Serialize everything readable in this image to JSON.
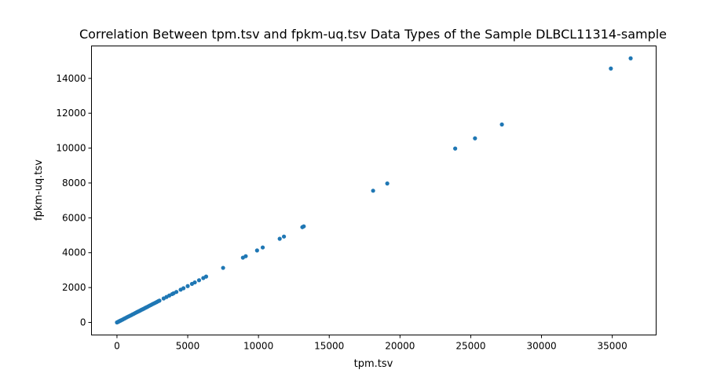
{
  "chart_data": {
    "type": "scatter",
    "title": "Correlation Between tpm.tsv and fpkm-uq.tsv Data Types of the Sample DLBCL11314-sample",
    "xlabel": "tpm.tsv",
    "ylabel": "fpkm-uq.tsv",
    "xlim": [
      -1800,
      38100
    ],
    "ylim": [
      -720,
      15860
    ],
    "x_ticks": [
      0,
      5000,
      10000,
      15000,
      20000,
      25000,
      30000,
      35000
    ],
    "x_tick_labels": [
      "0",
      "5000",
      "10000",
      "15000",
      "20000",
      "25000",
      "30000",
      "35000"
    ],
    "y_ticks": [
      0,
      2000,
      4000,
      6000,
      8000,
      10000,
      12000,
      14000
    ],
    "y_tick_labels": [
      "0",
      "2000",
      "4000",
      "6000",
      "8000",
      "10000",
      "12000",
      "14000"
    ],
    "grid": false,
    "point_color": "#1f77b4",
    "x": [
      0,
      50,
      100,
      150,
      200,
      250,
      300,
      400,
      500,
      600,
      700,
      800,
      900,
      1000,
      1100,
      1200,
      1300,
      1400,
      1500,
      1600,
      1700,
      1800,
      1900,
      2000,
      2100,
      2200,
      2300,
      2400,
      2500,
      2600,
      2700,
      2800,
      2900,
      3000,
      3300,
      3500,
      3700,
      3900,
      4000,
      4200,
      4500,
      4700,
      5000,
      5300,
      5500,
      5800,
      6100,
      6300,
      7500,
      8900,
      9100,
      9900,
      10300,
      11500,
      11800,
      13100,
      13200,
      18100,
      19100,
      23900,
      25300,
      27200,
      34900,
      36300
    ],
    "y": [
      0,
      20,
      40,
      65,
      85,
      105,
      125,
      165,
      210,
      250,
      295,
      335,
      375,
      415,
      460,
      500,
      545,
      585,
      625,
      665,
      710,
      750,
      790,
      835,
      875,
      915,
      960,
      1000,
      1045,
      1085,
      1125,
      1165,
      1210,
      1250,
      1375,
      1460,
      1545,
      1625,
      1670,
      1750,
      1880,
      1960,
      2085,
      2210,
      2295,
      2420,
      2545,
      2630,
      3130,
      3715,
      3800,
      4130,
      4300,
      4800,
      4925,
      5465,
      5510,
      7555,
      7970,
      9975,
      10560,
      11355,
      14565,
      15150
    ]
  }
}
